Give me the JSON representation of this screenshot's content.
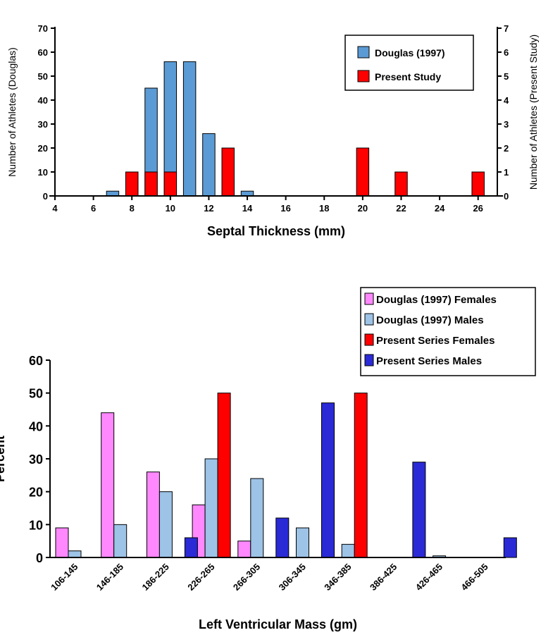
{
  "chart_data": [
    {
      "type": "bar",
      "xlabel": "Septal Thickness (mm)",
      "ylabel_left": "Number of Athletes (Douglas)",
      "ylabel_right": "Number of Athletes (Present Study)",
      "xlim": [
        4,
        27
      ],
      "xticks": [
        4,
        6,
        8,
        10,
        12,
        14,
        16,
        18,
        20,
        22,
        24,
        26
      ],
      "ylim_left": [
        0,
        70
      ],
      "yticks_left": [
        0,
        10,
        20,
        30,
        40,
        50,
        60,
        70
      ],
      "ylim_right": [
        0,
        7
      ],
      "yticks_right": [
        0,
        1,
        2,
        3,
        4,
        5,
        6,
        7
      ],
      "legend_position": "top-right",
      "series": [
        {
          "name": "Douglas (1997)",
          "color": "#5b9bd5",
          "axis": "left",
          "points": [
            [
              7,
              2
            ],
            [
              8,
              10
            ],
            [
              9,
              45
            ],
            [
              10,
              56
            ],
            [
              11,
              56
            ],
            [
              12,
              26
            ],
            [
              13,
              7
            ],
            [
              14,
              2
            ]
          ]
        },
        {
          "name": "Present Study",
          "color": "#ff0000",
          "axis": "right",
          "points": [
            [
              8,
              1
            ],
            [
              9,
              1
            ],
            [
              10,
              1
            ],
            [
              13,
              2
            ],
            [
              20,
              2
            ],
            [
              22,
              1
            ],
            [
              26,
              1
            ]
          ]
        }
      ]
    },
    {
      "type": "bar",
      "xlabel": "Left Ventricular Mass (gm)",
      "ylabel": "Percent",
      "ylim": [
        0,
        60
      ],
      "yticks": [
        0,
        10,
        20,
        30,
        40,
        50,
        60
      ],
      "categories": [
        "106-145",
        "146-185",
        "186-225",
        "226-265",
        "266-305",
        "306-345",
        "346-385",
        "386-425",
        "426-465",
        "466-505"
      ],
      "legend_position": "top-right",
      "series": [
        {
          "name": "Douglas (1997) Females",
          "color": "#ff88ff",
          "values": [
            9,
            44,
            26,
            16,
            5,
            0,
            0,
            0,
            0,
            0
          ]
        },
        {
          "name": "Douglas (1997) Males",
          "color": "#9dc3e6",
          "values": [
            2,
            10,
            20,
            30,
            24,
            9,
            4,
            0,
            0.5,
            0
          ]
        },
        {
          "name": "Present Series Females",
          "color": "#ff0000",
          "values": [
            0,
            0,
            0,
            50,
            0,
            0,
            50,
            0,
            0,
            0
          ]
        },
        {
          "name": "Present Series Males",
          "color": "#2a2ad6",
          "values": [
            0,
            0,
            6,
            0,
            12,
            47,
            0,
            29,
            0,
            6
          ]
        }
      ]
    }
  ]
}
